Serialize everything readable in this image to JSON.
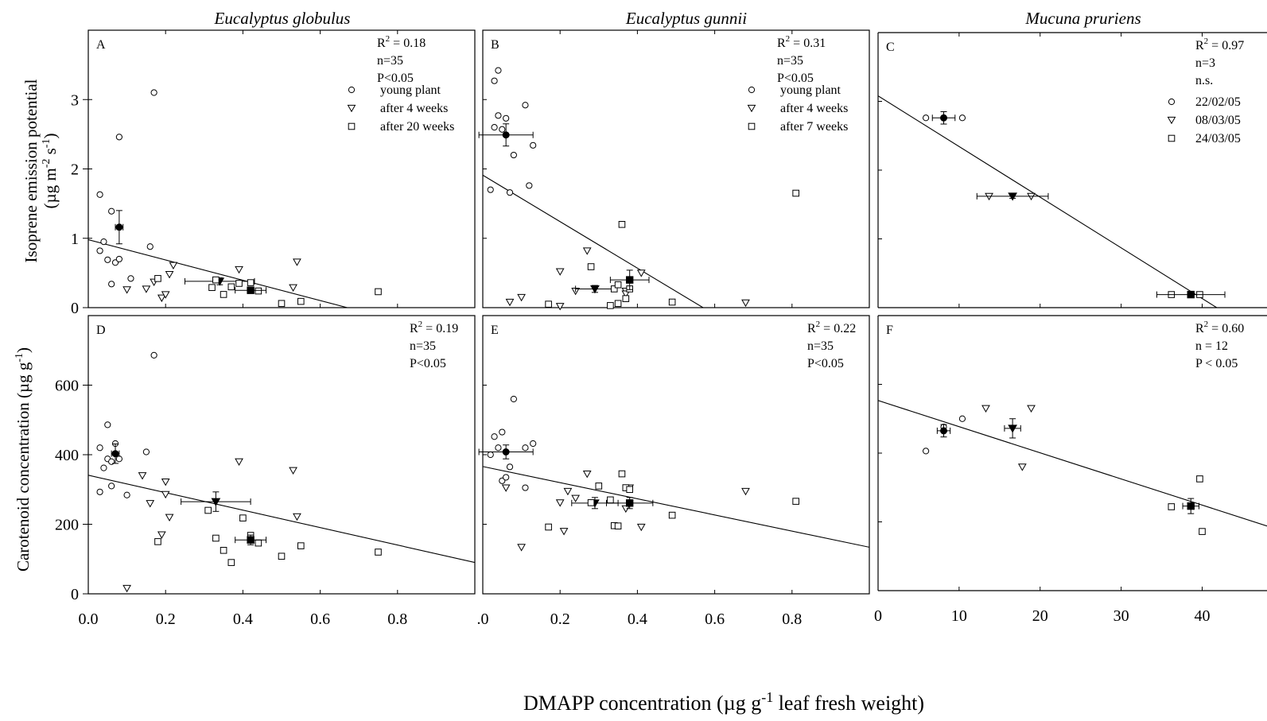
{
  "figure": {
    "column_titles": [
      "Eucalyptus globulus",
      "Eucalyptus gunnii",
      "Mucuna pruriens"
    ],
    "ylabel_top_line1": "Isoprene emission potential",
    "ylabel_top_line2": "(µg m",
    "ylabel_top_sup1": "-2",
    "ylabel_top_mid": " s",
    "ylabel_top_sup2": "-1",
    "ylabel_top_end": ")",
    "ylabel_bottom_main": "Carotenoid concentration (µg g",
    "ylabel_bottom_sup": "-1",
    "ylabel_bottom_end": ")",
    "xlabel_main": "DMAPP concentration (µg g",
    "xlabel_sup": "-1",
    "xlabel_end": " leaf fresh weight)"
  },
  "chart_data": [
    {
      "panel": "A",
      "type": "scatter",
      "species": "Eucalyptus globulus",
      "stats": {
        "r2": "R² = 0.18",
        "n": "n=35",
        "p": "P<0.05"
      },
      "xlim": [
        0,
        1.0
      ],
      "ylim": [
        0,
        4.0
      ],
      "yticks": [
        {
          "v": 0,
          "label": "0"
        },
        {
          "v": 1,
          "label": "1"
        },
        {
          "v": 2,
          "label": "2"
        },
        {
          "v": 3,
          "label": "3"
        }
      ],
      "legend": [
        "young plant",
        "after 4 weeks",
        "after 20 weeks"
      ],
      "regression": {
        "x": [
          0,
          0.67
        ],
        "y": [
          0.98,
          0
        ]
      },
      "series": [
        {
          "name": "young plant",
          "marker": "circle",
          "points": [
            [
              0.03,
              1.63
            ],
            [
              0.03,
              0.82
            ],
            [
              0.04,
              0.95
            ],
            [
              0.05,
              0.69
            ],
            [
              0.06,
              1.39
            ],
            [
              0.06,
              0.34
            ],
            [
              0.07,
              0.65
            ],
            [
              0.08,
              2.46
            ],
            [
              0.08,
              0.7
            ],
            [
              0.11,
              0.42
            ],
            [
              0.16,
              0.88
            ],
            [
              0.17,
              3.1
            ]
          ],
          "mean": {
            "x": 0.08,
            "y": 1.16,
            "xerr": 0.01,
            "yerr": 0.24
          }
        },
        {
          "name": "after 4 weeks",
          "marker": "triangle",
          "points": [
            [
              0.1,
              0.26
            ],
            [
              0.15,
              0.27
            ],
            [
              0.17,
              0.37
            ],
            [
              0.19,
              0.14
            ],
            [
              0.2,
              0.19
            ],
            [
              0.21,
              0.48
            ],
            [
              0.22,
              0.61
            ],
            [
              0.39,
              0.55
            ],
            [
              0.53,
              0.29
            ],
            [
              0.54,
              0.66
            ]
          ],
          "mean": {
            "x": 0.34,
            "y": 0.38,
            "xerr": 0.09,
            "yerr": 0.05
          }
        },
        {
          "name": "after 20 weeks",
          "marker": "square",
          "points": [
            [
              0.18,
              0.42
            ],
            [
              0.32,
              0.29
            ],
            [
              0.33,
              0.4
            ],
            [
              0.35,
              0.19
            ],
            [
              0.37,
              0.3
            ],
            [
              0.39,
              0.35
            ],
            [
              0.42,
              0.36
            ],
            [
              0.44,
              0.24
            ],
            [
              0.5,
              0.06
            ],
            [
              0.55,
              0.09
            ],
            [
              0.75,
              0.23
            ]
          ],
          "mean": {
            "x": 0.42,
            "y": 0.25,
            "xerr": 0.04,
            "yerr": 0.04
          }
        }
      ]
    },
    {
      "panel": "B",
      "type": "scatter",
      "species": "Eucalyptus gunnii",
      "stats": {
        "r2": "R² = 0.31",
        "n": "n=35",
        "p": "P<0.05"
      },
      "xlim": [
        0,
        1.0
      ],
      "ylim": [
        0,
        4.0
      ],
      "yticks": [],
      "legend": [
        "young plant",
        "after 4 weeks",
        "after 7 weeks"
      ],
      "regression": {
        "x": [
          0,
          0.57
        ],
        "y": [
          1.91,
          0
        ]
      },
      "series": [
        {
          "name": "young plant",
          "marker": "circle",
          "points": [
            [
              0.02,
              1.7
            ],
            [
              0.03,
              2.6
            ],
            [
              0.03,
              3.27
            ],
            [
              0.04,
              3.42
            ],
            [
              0.04,
              2.77
            ],
            [
              0.05,
              2.57
            ],
            [
              0.06,
              2.73
            ],
            [
              0.07,
              1.66
            ],
            [
              0.08,
              2.2
            ],
            [
              0.11,
              2.92
            ],
            [
              0.12,
              1.76
            ],
            [
              0.13,
              2.34
            ]
          ],
          "mean": {
            "x": 0.06,
            "y": 2.49,
            "xerr": 0.07,
            "yerr": 0.16
          }
        },
        {
          "name": "after 4 weeks",
          "marker": "triangle",
          "points": [
            [
              0.07,
              0.08
            ],
            [
              0.1,
              0.15
            ],
            [
              0.2,
              0.52
            ],
            [
              0.2,
              0.02
            ],
            [
              0.24,
              0.24
            ],
            [
              0.27,
              0.82
            ],
            [
              0.37,
              0.24
            ],
            [
              0.37,
              0.2
            ],
            [
              0.41,
              0.5
            ],
            [
              0.68,
              0.07
            ]
          ],
          "mean": {
            "x": 0.29,
            "y": 0.27,
            "xerr": 0.05,
            "yerr": 0.05
          }
        },
        {
          "name": "after 7 weeks",
          "marker": "square",
          "points": [
            [
              0.17,
              0.05
            ],
            [
              0.28,
              0.59
            ],
            [
              0.33,
              0.03
            ],
            [
              0.34,
              0.27
            ],
            [
              0.35,
              0.33
            ],
            [
              0.35,
              0.06
            ],
            [
              0.36,
              1.2
            ],
            [
              0.37,
              0.13
            ],
            [
              0.38,
              0.27
            ],
            [
              0.49,
              0.08
            ],
            [
              0.81,
              1.65
            ]
          ],
          "mean": {
            "x": 0.38,
            "y": 0.4,
            "xerr": 0.05,
            "yerr": 0.14
          }
        }
      ]
    },
    {
      "panel": "C",
      "type": "scatter",
      "species": "Mucuna pruriens",
      "stats": {
        "r2": "R² = 0.97",
        "n": "n=3",
        "p": "n.s."
      },
      "xlim": [
        0,
        48
      ],
      "ylim": [
        0,
        4.0
      ],
      "yticks": [],
      "legend": [
        "22/02/05",
        "08/03/05",
        "24/03/05"
      ],
      "regression": {
        "x": [
          0,
          41.8
        ],
        "y": [
          3.08,
          0
        ]
      },
      "series": [
        {
          "name": "22/02/05",
          "marker": "circle",
          "points": [
            [
              5.9,
              2.76
            ],
            [
              10.4,
              2.76
            ]
          ],
          "mean": {
            "x": 8.1,
            "y": 2.76,
            "xerr": 1.4,
            "yerr": 0.09
          }
        },
        {
          "name": "08/03/05",
          "marker": "triangle",
          "points": [
            [
              13.7,
              1.62
            ],
            [
              18.9,
              1.62
            ]
          ],
          "mean": {
            "x": 16.6,
            "y": 1.62,
            "xerr": 4.4,
            "yerr": 0.03
          }
        },
        {
          "name": "24/03/05",
          "marker": "square",
          "points": [
            [
              36.2,
              0.19
            ],
            [
              39.7,
              0.19
            ]
          ],
          "mean": {
            "x": 38.6,
            "y": 0.19,
            "xerr": 4.2,
            "yerr": 0.02
          }
        }
      ]
    },
    {
      "panel": "D",
      "type": "scatter",
      "species": "Eucalyptus globulus",
      "stats": {
        "r2": "R² = 0.19",
        "n": "n=35",
        "p": "P<0.05"
      },
      "xlim": [
        0,
        1.0
      ],
      "ylim": [
        0,
        800
      ],
      "yticks": [
        {
          "v": 0,
          "label": "0"
        },
        {
          "v": 200,
          "label": "200"
        },
        {
          "v": 400,
          "label": "400"
        },
        {
          "v": 600,
          "label": "600"
        }
      ],
      "xticks": [
        {
          "v": 0,
          "label": "0.0"
        },
        {
          "v": 0.2,
          "label": "0.2"
        },
        {
          "v": 0.4,
          "label": "0.4"
        },
        {
          "v": 0.6,
          "label": "0.6"
        },
        {
          "v": 0.8,
          "label": "0.8"
        }
      ],
      "regression": {
        "x": [
          0,
          1.0
        ],
        "y": [
          341,
          90
        ]
      },
      "series": [
        {
          "name": "young plant",
          "marker": "circle",
          "points": [
            [
              0.03,
              293
            ],
            [
              0.03,
              420
            ],
            [
              0.04,
              362
            ],
            [
              0.05,
              388
            ],
            [
              0.05,
              486
            ],
            [
              0.06,
              310
            ],
            [
              0.06,
              380
            ],
            [
              0.07,
              432
            ],
            [
              0.08,
              388
            ],
            [
              0.1,
              284
            ],
            [
              0.15,
              408
            ],
            [
              0.17,
              686
            ]
          ],
          "mean": {
            "x": 0.07,
            "y": 403,
            "xerr": 0.01,
            "yerr": 28
          }
        },
        {
          "name": "after 4 weeks",
          "marker": "triangle",
          "points": [
            [
              0.1,
              16
            ],
            [
              0.14,
              340
            ],
            [
              0.16,
              260
            ],
            [
              0.19,
              170
            ],
            [
              0.2,
              322
            ],
            [
              0.2,
              286
            ],
            [
              0.21,
              220
            ],
            [
              0.39,
              380
            ],
            [
              0.53,
              355
            ],
            [
              0.54,
              222
            ]
          ],
          "mean": {
            "x": 0.33,
            "y": 265,
            "xerr": 0.09,
            "yerr": 28
          }
        },
        {
          "name": "after 20 weeks",
          "marker": "square",
          "points": [
            [
              0.18,
              150
            ],
            [
              0.31,
              240
            ],
            [
              0.33,
              160
            ],
            [
              0.35,
              125
            ],
            [
              0.37,
              90
            ],
            [
              0.4,
              218
            ],
            [
              0.42,
              168
            ],
            [
              0.44,
              146
            ],
            [
              0.5,
              108
            ],
            [
              0.55,
              138
            ],
            [
              0.75,
              120
            ]
          ],
          "mean": {
            "x": 0.42,
            "y": 155,
            "xerr": 0.04,
            "yerr": 14
          }
        }
      ]
    },
    {
      "panel": "E",
      "type": "scatter",
      "species": "Eucalyptus gunnii",
      "stats": {
        "r2": "R² = 0.22",
        "n": "n=35",
        "p": "P<0.05"
      },
      "xlim": [
        0,
        1.0
      ],
      "ylim": [
        0,
        800
      ],
      "yticks": [],
      "xticks": [
        {
          "v": 0,
          "label": ".0"
        },
        {
          "v": 0.2,
          "label": "0.2"
        },
        {
          "v": 0.4,
          "label": "0.4"
        },
        {
          "v": 0.6,
          "label": "0.6"
        },
        {
          "v": 0.8,
          "label": "0.8"
        }
      ],
      "regression": {
        "x": [
          0,
          1.0
        ],
        "y": [
          366,
          134
        ]
      },
      "series": [
        {
          "name": "young plant",
          "marker": "circle",
          "points": [
            [
              0.02,
              400
            ],
            [
              0.03,
              452
            ],
            [
              0.04,
              420
            ],
            [
              0.05,
              325
            ],
            [
              0.05,
              465
            ],
            [
              0.06,
              335
            ],
            [
              0.07,
              365
            ],
            [
              0.08,
              560
            ],
            [
              0.11,
              305
            ],
            [
              0.11,
              420
            ],
            [
              0.13,
              432
            ]
          ],
          "mean": {
            "x": 0.06,
            "y": 408,
            "xerr": 0.07,
            "yerr": 20
          }
        },
        {
          "name": "after 4 weeks",
          "marker": "triangle",
          "points": [
            [
              0.06,
              305
            ],
            [
              0.1,
              134
            ],
            [
              0.2,
              262
            ],
            [
              0.21,
              180
            ],
            [
              0.22,
              295
            ],
            [
              0.24,
              275
            ],
            [
              0.27,
              345
            ],
            [
              0.37,
              245
            ],
            [
              0.38,
              305
            ],
            [
              0.41,
              192
            ],
            [
              0.68,
              295
            ]
          ],
          "mean": {
            "x": 0.29,
            "y": 261,
            "xerr": 0.06,
            "yerr": 16
          }
        },
        {
          "name": "after 7 weeks",
          "marker": "square",
          "points": [
            [
              0.17,
              192
            ],
            [
              0.28,
              262
            ],
            [
              0.3,
              310
            ],
            [
              0.33,
              270
            ],
            [
              0.34,
              196
            ],
            [
              0.35,
              195
            ],
            [
              0.36,
              345
            ],
            [
              0.37,
              305
            ],
            [
              0.38,
              300
            ],
            [
              0.49,
              226
            ],
            [
              0.81,
              266
            ]
          ],
          "mean": {
            "x": 0.38,
            "y": 261,
            "xerr": 0.06,
            "yerr": 16
          }
        }
      ]
    },
    {
      "panel": "F",
      "type": "scatter",
      "species": "Mucuna pruriens",
      "stats": {
        "r2": "R² = 0.60",
        "n": "n = 12",
        "p": "P < 0.05"
      },
      "xlim": [
        0,
        48
      ],
      "ylim": [
        0,
        800
      ],
      "yticks": [],
      "xticks": [
        {
          "v": 0,
          "label": "0"
        },
        {
          "v": 10,
          "label": "10"
        },
        {
          "v": 20,
          "label": "20"
        },
        {
          "v": 30,
          "label": "30"
        },
        {
          "v": 40,
          "label": "40"
        }
      ],
      "regression": {
        "x": [
          0,
          48
        ],
        "y": [
          553,
          188
        ]
      },
      "series": [
        {
          "name": "22/02/05",
          "marker": "circle",
          "points": [
            [
              5.9,
              406
            ],
            [
              8.1,
              476
            ],
            [
              10.4,
              500
            ]
          ],
          "mean": {
            "x": 8.1,
            "y": 465,
            "xerr": 0.8,
            "yerr": 18
          }
        },
        {
          "name": "08/03/05",
          "marker": "triangle",
          "points": [
            [
              13.3,
              530
            ],
            [
              17.8,
              360
            ],
            [
              18.9,
              530
            ]
          ],
          "mean": {
            "x": 16.6,
            "y": 472,
            "xerr": 1.0,
            "yerr": 28
          }
        },
        {
          "name": "24/03/05",
          "marker": "square",
          "points": [
            [
              36.2,
              244
            ],
            [
              39.7,
              325
            ],
            [
              40.0,
              172
            ]
          ],
          "mean": {
            "x": 38.6,
            "y": 246,
            "xerr": 1.0,
            "yerr": 22
          }
        }
      ]
    }
  ]
}
